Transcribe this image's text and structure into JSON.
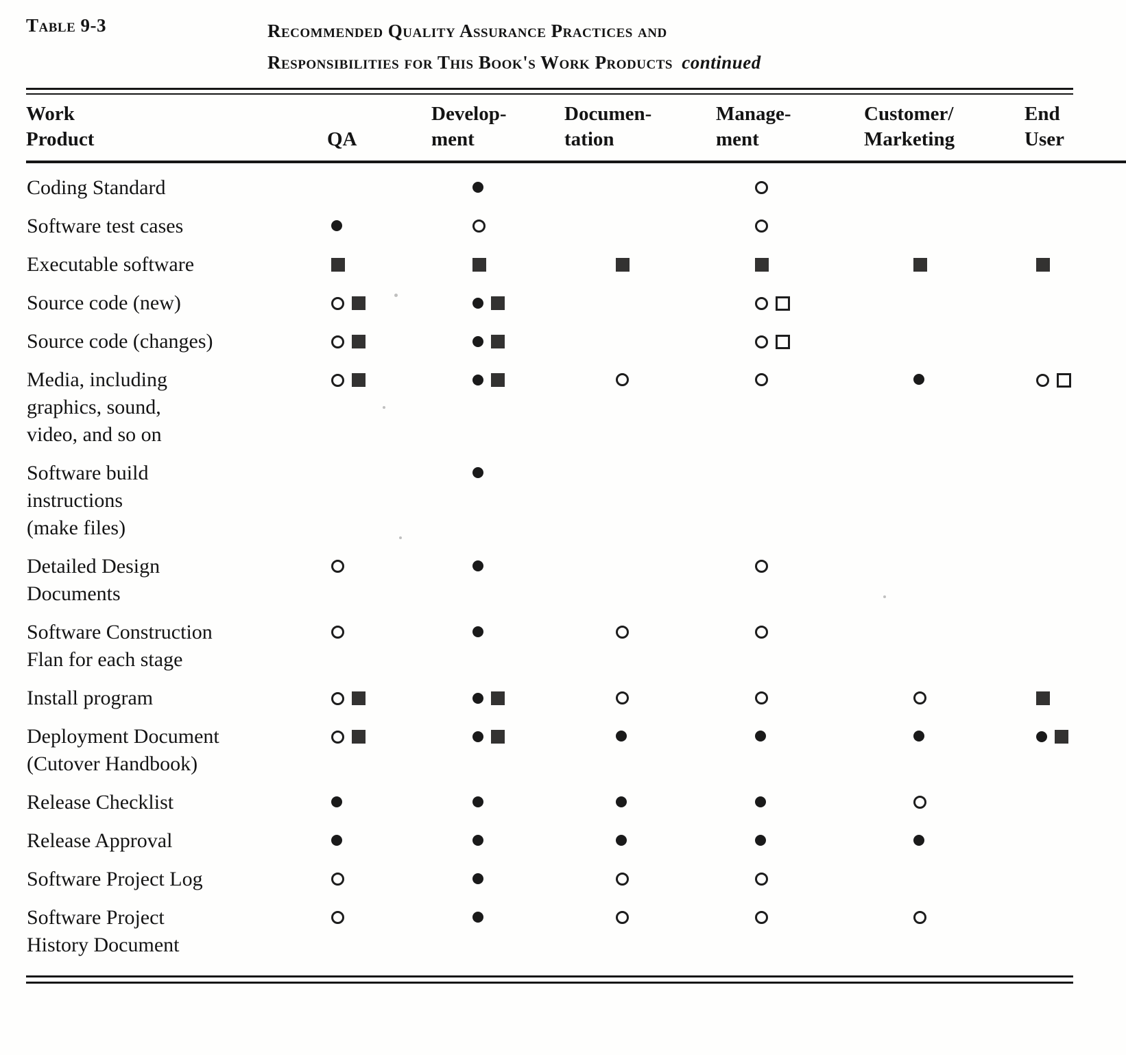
{
  "page": {
    "label": "Table 9-3",
    "title_line1": "Recommended Quality Assurance Practices and",
    "title_line2": "Responsibilities for This Book's Work Products",
    "title_continued": "continued"
  },
  "table": {
    "columns": [
      {
        "key": "product",
        "lines": [
          "Work",
          "Product"
        ]
      },
      {
        "key": "qa",
        "lines": [
          "QA"
        ]
      },
      {
        "key": "development",
        "lines": [
          "Develop-",
          "ment"
        ]
      },
      {
        "key": "documentation",
        "lines": [
          "Documen-",
          "tation"
        ]
      },
      {
        "key": "management",
        "lines": [
          "Manage-",
          "ment"
        ]
      },
      {
        "key": "customer_marketing",
        "lines": [
          "Customer/",
          "Marketing"
        ]
      },
      {
        "key": "end_user",
        "lines": [
          "End",
          "User"
        ]
      }
    ],
    "symbol_names": [
      "filled-circle",
      "open-circle",
      "filled-square",
      "open-square"
    ],
    "rows": [
      {
        "product": "Coding Standard",
        "qa": [],
        "development": [
          "filled-circle"
        ],
        "documentation": [],
        "management": [
          "open-circle"
        ],
        "customer_marketing": [],
        "end_user": []
      },
      {
        "product": "Software test cases",
        "qa": [
          "filled-circle"
        ],
        "development": [
          "open-circle"
        ],
        "documentation": [],
        "management": [
          "open-circle"
        ],
        "customer_marketing": [],
        "end_user": []
      },
      {
        "product": "Executable software",
        "qa": [
          "filled-square"
        ],
        "development": [
          "filled-square"
        ],
        "documentation": [
          "filled-square"
        ],
        "management": [
          "filled-square"
        ],
        "customer_marketing": [
          "filled-square"
        ],
        "end_user": [
          "filled-square"
        ]
      },
      {
        "product": "Source code (new)",
        "qa": [
          "open-circle",
          "filled-square"
        ],
        "development": [
          "filled-circle",
          "filled-square"
        ],
        "documentation": [],
        "management": [
          "open-circle",
          "open-square"
        ],
        "customer_marketing": [],
        "end_user": []
      },
      {
        "product": "Source code (changes)",
        "qa": [
          "open-circle",
          "filled-square"
        ],
        "development": [
          "filled-circle",
          "filled-square"
        ],
        "documentation": [],
        "management": [
          "open-circle",
          "open-square"
        ],
        "customer_marketing": [],
        "end_user": []
      },
      {
        "product": "Media, including\ngraphics, sound,\nvideo, and so on",
        "qa": [
          "open-circle",
          "filled-square"
        ],
        "development": [
          "filled-circle",
          "filled-square"
        ],
        "documentation": [
          "open-circle"
        ],
        "management": [
          "open-circle"
        ],
        "customer_marketing": [
          "filled-circle"
        ],
        "end_user": [
          "open-circle",
          "open-square"
        ]
      },
      {
        "product": "Software build\ninstructions\n(make files)",
        "qa": [],
        "development": [
          "filled-circle"
        ],
        "documentation": [],
        "management": [],
        "customer_marketing": [],
        "end_user": []
      },
      {
        "product": "Detailed Design\nDocuments",
        "qa": [
          "open-circle"
        ],
        "development": [
          "filled-circle"
        ],
        "documentation": [],
        "management": [
          "open-circle"
        ],
        "customer_marketing": [],
        "end_user": []
      },
      {
        "product": "Software Construction\nFlan for each stage",
        "qa": [
          "open-circle"
        ],
        "development": [
          "filled-circle"
        ],
        "documentation": [
          "open-circle"
        ],
        "management": [
          "open-circle"
        ],
        "customer_marketing": [],
        "end_user": []
      },
      {
        "product": "Install program",
        "qa": [
          "open-circle",
          "filled-square"
        ],
        "development": [
          "filled-circle",
          "filled-square"
        ],
        "documentation": [
          "open-circle"
        ],
        "management": [
          "open-circle"
        ],
        "customer_marketing": [
          "open-circle"
        ],
        "end_user": [
          "filled-square"
        ]
      },
      {
        "product": "Deployment Document\n(Cutover Handbook)",
        "qa": [
          "open-circle",
          "filled-square"
        ],
        "development": [
          "filled-circle",
          "filled-square"
        ],
        "documentation": [
          "filled-circle"
        ],
        "management": [
          "filled-circle"
        ],
        "customer_marketing": [
          "filled-circle"
        ],
        "end_user": [
          "filled-circle",
          "filled-square"
        ]
      },
      {
        "product": "Release Checklist",
        "qa": [
          "filled-circle"
        ],
        "development": [
          "filled-circle"
        ],
        "documentation": [
          "filled-circle"
        ],
        "management": [
          "filled-circle"
        ],
        "customer_marketing": [
          "open-circle"
        ],
        "end_user": []
      },
      {
        "product": "Release Approval",
        "qa": [
          "filled-circle"
        ],
        "development": [
          "filled-circle"
        ],
        "documentation": [
          "filled-circle"
        ],
        "management": [
          "filled-circle"
        ],
        "customer_marketing": [
          "filled-circle"
        ],
        "end_user": []
      },
      {
        "product": "Software Project Log",
        "qa": [
          "open-circle"
        ],
        "development": [
          "filled-circle"
        ],
        "documentation": [
          "open-circle"
        ],
        "management": [
          "open-circle"
        ],
        "customer_marketing": [],
        "end_user": []
      },
      {
        "product": "Software Project\nHistory Document",
        "qa": [
          "open-circle"
        ],
        "development": [
          "filled-circle"
        ],
        "documentation": [
          "open-circle"
        ],
        "management": [
          "open-circle"
        ],
        "customer_marketing": [
          "open-circle"
        ],
        "end_user": []
      }
    ]
  }
}
